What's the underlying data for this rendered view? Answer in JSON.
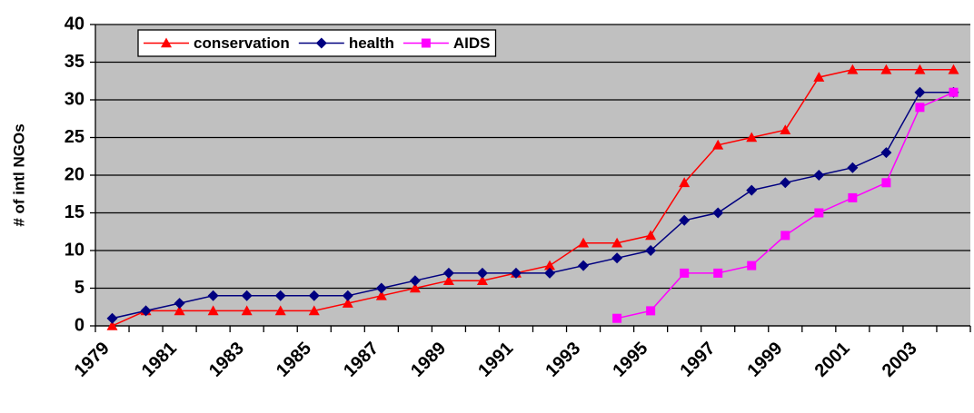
{
  "chart_data": {
    "type": "line",
    "y_label": "# of intl NGOs",
    "categories": [
      "1979",
      null,
      "1981",
      null,
      "1983",
      null,
      "1985",
      null,
      "1987",
      null,
      "1989",
      null,
      "1991",
      null,
      "1993",
      null,
      "1995",
      null,
      "1997",
      null,
      "1999",
      null,
      "2001",
      null,
      "2003",
      null
    ],
    "series": [
      {
        "name": "conservation",
        "color": "#ff0000",
        "marker": "triangle",
        "values": [
          0,
          2,
          2,
          2,
          2,
          2,
          2,
          3,
          4,
          5,
          6,
          6,
          7,
          8,
          11,
          11,
          12,
          19,
          24,
          25,
          26,
          33,
          34,
          34,
          34,
          34
        ]
      },
      {
        "name": "health",
        "color": "#000080",
        "marker": "diamond",
        "values": [
          1,
          2,
          3,
          4,
          4,
          4,
          4,
          4,
          5,
          6,
          7,
          7,
          7,
          7,
          8,
          9,
          10,
          14,
          15,
          18,
          19,
          20,
          21,
          23,
          31,
          31
        ]
      },
      {
        "name": "AIDS",
        "color": "#ff00ff",
        "marker": "square",
        "values": [
          null,
          null,
          null,
          null,
          null,
          null,
          null,
          null,
          null,
          null,
          null,
          null,
          null,
          null,
          null,
          1,
          2,
          7,
          7,
          8,
          12,
          15,
          17,
          19,
          29,
          31
        ]
      }
    ],
    "ylim": [
      0,
      40
    ],
    "yticks": [
      0,
      5,
      10,
      15,
      20,
      25,
      30,
      35,
      40
    ],
    "grid": true,
    "legend": "top-left",
    "plot_background": "#c0c0c0"
  }
}
